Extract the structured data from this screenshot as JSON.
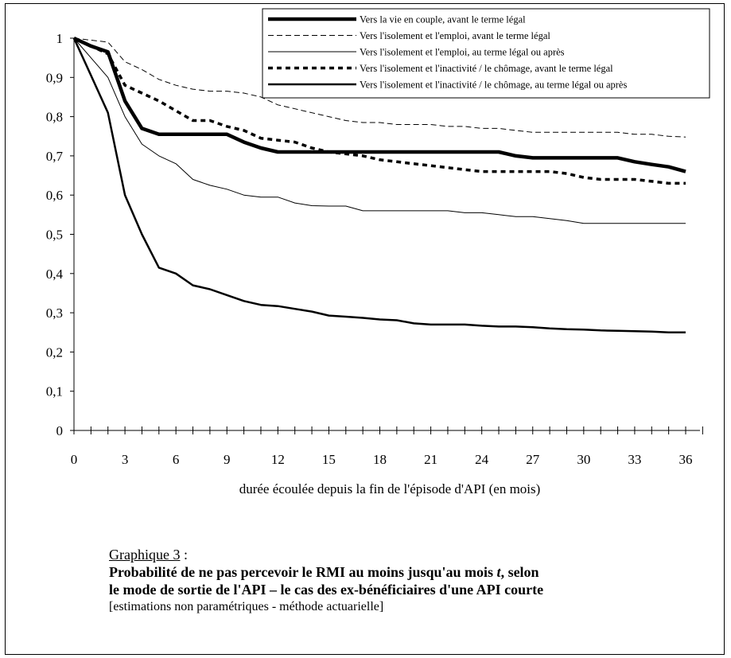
{
  "caption": {
    "heading": "Graphique 3",
    "heading_suffix": " :",
    "title_line1_a": "Probabilité de ne pas percevoir le RMI au moins jusqu'au mois ",
    "title_line1_t": "t",
    "title_line1_b": ", selon",
    "title_line2": "le mode de sortie de l'API  –  le cas des ex-bénéficiaires d'une API courte",
    "note": "[estimations non paramétriques - méthode actuarielle]"
  },
  "chart_data": {
    "type": "line",
    "xlabel": "durée écoulée depuis la fin de l'épisode d'API  (en mois)",
    "ylabel": "",
    "xlim": [
      0,
      36
    ],
    "ylim": [
      0,
      1
    ],
    "xticks": [
      0,
      3,
      6,
      9,
      12,
      15,
      18,
      21,
      24,
      27,
      30,
      33,
      36
    ],
    "xtick_labels": [
      "0",
      "3",
      "6",
      "9",
      "12",
      "15",
      "18",
      "21",
      "24",
      "27",
      "30",
      "33",
      "36"
    ],
    "yticks": [
      0,
      0.1,
      0.2,
      0.3,
      0.4,
      0.5,
      0.6,
      0.7,
      0.8,
      0.9,
      1
    ],
    "ytick_labels": [
      "0",
      "0,1",
      "0,2",
      "0,3",
      "0,4",
      "0,5",
      "0,6",
      "0,7",
      "0,8",
      "0,9",
      "1"
    ],
    "grid": false,
    "legend_position": "top-right",
    "x": [
      0,
      1,
      2,
      3,
      4,
      5,
      6,
      7,
      8,
      9,
      10,
      11,
      12,
      13,
      14,
      15,
      16,
      17,
      18,
      19,
      20,
      21,
      22,
      23,
      24,
      25,
      26,
      27,
      28,
      29,
      30,
      31,
      32,
      33,
      34,
      35,
      36
    ],
    "series": [
      {
        "name": "Vers la vie en couple, avant le terme légal",
        "style": "thick-solid",
        "values": [
          1,
          0.98,
          0.965,
          0.84,
          0.77,
          0.755,
          0.755,
          0.755,
          0.755,
          0.755,
          0.735,
          0.72,
          0.71,
          0.71,
          0.71,
          0.71,
          0.71,
          0.71,
          0.71,
          0.71,
          0.71,
          0.71,
          0.71,
          0.71,
          0.71,
          0.71,
          0.7,
          0.695,
          0.695,
          0.695,
          0.695,
          0.695,
          0.695,
          0.685,
          0.678,
          0.672,
          0.66
        ]
      },
      {
        "name": "Vers l'isolement et l'emploi, avant le terme légal",
        "style": "thin-dashed",
        "values": [
          1,
          0.995,
          0.99,
          0.94,
          0.92,
          0.895,
          0.88,
          0.87,
          0.865,
          0.865,
          0.86,
          0.85,
          0.83,
          0.82,
          0.81,
          0.8,
          0.79,
          0.785,
          0.785,
          0.78,
          0.78,
          0.78,
          0.775,
          0.775,
          0.77,
          0.77,
          0.765,
          0.76,
          0.76,
          0.76,
          0.76,
          0.76,
          0.76,
          0.755,
          0.755,
          0.75,
          0.748
        ]
      },
      {
        "name": "Vers l'isolement et l'emploi, au terme légal ou après",
        "style": "thin-solid",
        "values": [
          1,
          0.95,
          0.9,
          0.8,
          0.73,
          0.7,
          0.68,
          0.64,
          0.625,
          0.615,
          0.6,
          0.595,
          0.595,
          0.58,
          0.573,
          0.572,
          0.572,
          0.56,
          0.56,
          0.56,
          0.56,
          0.56,
          0.56,
          0.555,
          0.555,
          0.55,
          0.545,
          0.545,
          0.54,
          0.535,
          0.528,
          0.528,
          0.528,
          0.528,
          0.528,
          0.528,
          0.528
        ]
      },
      {
        "name": "Vers l'isolement et l'inactivité / le chômage, avant le terme légal",
        "style": "thick-dotted",
        "values": [
          1,
          0.98,
          0.96,
          0.88,
          0.86,
          0.84,
          0.815,
          0.79,
          0.79,
          0.775,
          0.765,
          0.745,
          0.74,
          0.735,
          0.72,
          0.71,
          0.705,
          0.7,
          0.69,
          0.685,
          0.68,
          0.675,
          0.67,
          0.665,
          0.66,
          0.66,
          0.66,
          0.66,
          0.66,
          0.655,
          0.645,
          0.64,
          0.64,
          0.64,
          0.635,
          0.63,
          0.63
        ]
      },
      {
        "name": "Vers l'isolement et l'inactivité / le chômage, au terme légal ou après",
        "style": "medium-solid",
        "values": [
          1,
          0.905,
          0.81,
          0.6,
          0.5,
          0.415,
          0.4,
          0.37,
          0.36,
          0.345,
          0.33,
          0.32,
          0.317,
          0.31,
          0.303,
          0.293,
          0.29,
          0.287,
          0.283,
          0.281,
          0.273,
          0.27,
          0.27,
          0.27,
          0.267,
          0.265,
          0.265,
          0.263,
          0.26,
          0.258,
          0.257,
          0.255,
          0.254,
          0.253,
          0.252,
          0.25,
          0.25
        ]
      }
    ]
  }
}
